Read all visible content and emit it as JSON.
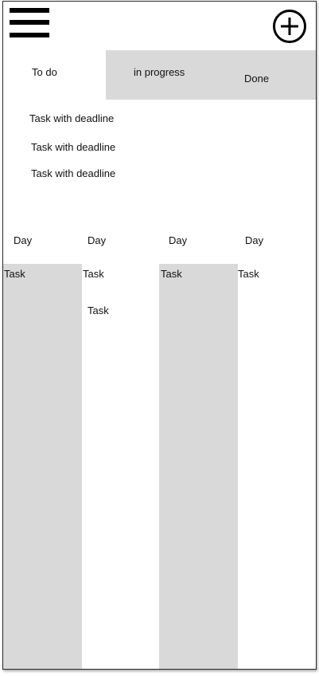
{
  "header": {
    "menu_icon": "hamburger-menu-icon",
    "add_icon": "plus-circle-icon"
  },
  "tabs": [
    {
      "label": "To do"
    },
    {
      "label": "in progress"
    },
    {
      "label": "Done"
    }
  ],
  "tasks": [
    {
      "label": "Task with deadline"
    },
    {
      "label": "Task with deadline"
    },
    {
      "label": "Task with deadline"
    }
  ],
  "calendar": {
    "days": [
      {
        "label": "Day",
        "tasks": [
          "Task"
        ]
      },
      {
        "label": "Day",
        "tasks": [
          "Task",
          "Task"
        ]
      },
      {
        "label": "Day",
        "tasks": [
          "Task"
        ]
      },
      {
        "label": "Day",
        "tasks": [
          "Task"
        ]
      }
    ]
  },
  "colors": {
    "panel_gray": "#d9d9d9",
    "ink": "#000000"
  }
}
